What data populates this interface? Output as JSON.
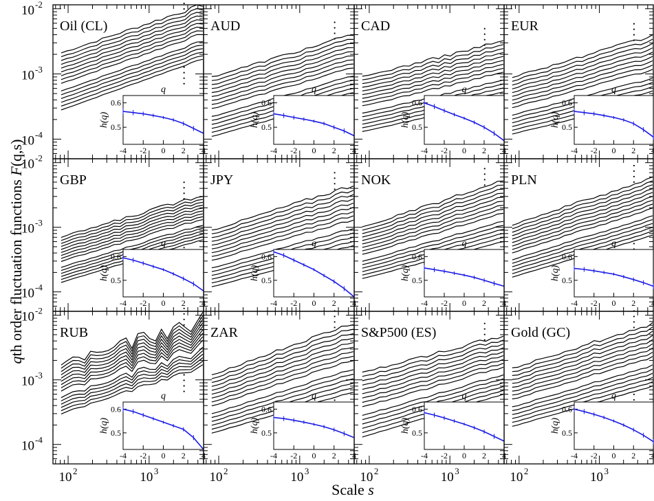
{
  "figure": {
    "ylabel_italic": "q",
    "ylabel_rest": "th order fluctuation functions ",
    "ylabel_func": "F",
    "ylabel_args": "(q,s)",
    "xlabel_text": "Scale ",
    "xlabel_var": "s",
    "main_y_ticks": [
      {
        "exp": "-2"
      },
      {
        "exp": "-3"
      },
      {
        "exp": "-4"
      }
    ],
    "main_x_ticks": [
      {
        "exp": "2"
      },
      {
        "exp": "3"
      }
    ],
    "inset": {
      "xlabel": "q",
      "ylabel": "h(q)",
      "yticks": [
        "0.6",
        "0.5"
      ],
      "xticks": [
        "-4",
        "-2",
        "0",
        "2",
        "4"
      ]
    },
    "colors": {
      "axes": "#000000",
      "curves": "#000000",
      "hq": "#1a1ae6",
      "gap_curve": "#ffffff"
    }
  },
  "chart_data": [
    {
      "type": "line",
      "title": "Oil (CL)",
      "xscale": "log",
      "yscale": "log",
      "xlim": [
        65,
        4700
      ],
      "ylim": [
        5e-05,
        0.0115
      ],
      "n_curves": 16,
      "F_at_smin": {
        "top": 0.0021,
        "bottom": 0.00028
      },
      "F_at_smax": {
        "top": 0.0115,
        "bottom": 0.0017
      },
      "hq": {
        "q": [
          -4,
          -3,
          -2,
          -1,
          0,
          1,
          2,
          3,
          4
        ],
        "h": [
          0.565,
          0.56,
          0.555,
          0.548,
          0.54,
          0.53,
          0.515,
          0.495,
          0.475
        ]
      }
    },
    {
      "type": "line",
      "title": "AUD",
      "xscale": "log",
      "yscale": "log",
      "xlim": [
        65,
        4700
      ],
      "ylim": [
        5e-05,
        0.0115
      ],
      "n_curves": 16,
      "F_at_smin": {
        "top": 0.0009,
        "bottom": 0.00011
      },
      "F_at_smax": {
        "top": 0.004,
        "bottom": 0.00045
      },
      "hq": {
        "q": [
          -4,
          -3,
          -2,
          -1,
          0,
          1,
          2,
          3,
          4
        ],
        "h": [
          0.555,
          0.548,
          0.54,
          0.533,
          0.525,
          0.515,
          0.5,
          0.485,
          0.465
        ]
      }
    },
    {
      "type": "line",
      "title": "CAD",
      "xscale": "log",
      "yscale": "log",
      "xlim": [
        65,
        4700
      ],
      "ylim": [
        5e-05,
        0.0115
      ],
      "n_curves": 16,
      "F_at_smin": {
        "top": 0.0009,
        "bottom": 0.00013
      },
      "F_at_smax": {
        "top": 0.0032,
        "bottom": 0.0004
      },
      "hq": {
        "q": [
          -4,
          -3,
          -2,
          -1,
          0,
          1,
          2,
          3,
          4
        ],
        "h": [
          0.6,
          0.585,
          0.568,
          0.552,
          0.537,
          0.52,
          0.5,
          0.475,
          0.445
        ]
      }
    },
    {
      "type": "line",
      "title": "EUR",
      "xscale": "log",
      "yscale": "log",
      "xlim": [
        65,
        4700
      ],
      "ylim": [
        5e-05,
        0.0115
      ],
      "n_curves": 16,
      "F_at_smin": {
        "top": 0.0009,
        "bottom": 0.00012
      },
      "F_at_smax": {
        "top": 0.0038,
        "bottom": 0.0004
      },
      "hq": {
        "q": [
          -4,
          -3,
          -2,
          -1,
          0,
          1,
          2,
          3,
          4
        ],
        "h": [
          0.565,
          0.56,
          0.555,
          0.548,
          0.54,
          0.53,
          0.515,
          0.49,
          0.46
        ]
      }
    },
    {
      "type": "line",
      "title": "GBP",
      "xscale": "log",
      "yscale": "log",
      "xlim": [
        65,
        4700
      ],
      "ylim": [
        5e-05,
        0.0115
      ],
      "n_curves": 16,
      "F_at_smin": {
        "top": 0.0007,
        "bottom": 0.00014
      },
      "F_at_smax": {
        "top": 0.0032,
        "bottom": 0.00065
      },
      "hq": {
        "q": [
          -4,
          -3,
          -2,
          -1,
          0,
          1,
          2,
          3,
          4
        ],
        "h": [
          0.595,
          0.585,
          0.572,
          0.558,
          0.545,
          0.527,
          0.507,
          0.485,
          0.455
        ]
      }
    },
    {
      "type": "line",
      "title": "JPY",
      "xscale": "log",
      "yscale": "log",
      "xlim": [
        65,
        4700
      ],
      "ylim": [
        5e-05,
        0.0115
      ],
      "n_curves": 16,
      "F_at_smin": {
        "top": 0.0009,
        "bottom": 0.00012
      },
      "F_at_smax": {
        "top": 0.0045,
        "bottom": 0.00045
      },
      "hq": {
        "q": [
          -4,
          -3,
          -2,
          -1,
          0,
          1,
          2,
          3,
          4
        ],
        "h": [
          0.62,
          0.605,
          0.585,
          0.565,
          0.545,
          0.52,
          0.495,
          0.465,
          0.43
        ]
      }
    },
    {
      "type": "line",
      "title": "NOK",
      "xscale": "log",
      "yscale": "log",
      "xlim": [
        65,
        4700
      ],
      "ylim": [
        5e-05,
        0.0115
      ],
      "n_curves": 16,
      "F_at_smin": {
        "top": 0.001,
        "bottom": 0.00016
      },
      "F_at_smax": {
        "top": 0.0052,
        "bottom": 0.0006
      },
      "hq": {
        "q": [
          -4,
          -3,
          -2,
          -1,
          0,
          1,
          2,
          3,
          4
        ],
        "h": [
          0.552,
          0.545,
          0.538,
          0.53,
          0.522,
          0.512,
          0.5,
          0.487,
          0.475
        ]
      }
    },
    {
      "type": "line",
      "title": "PLN",
      "xscale": "log",
      "yscale": "log",
      "xlim": [
        65,
        4700
      ],
      "ylim": [
        5e-05,
        0.0115
      ],
      "n_curves": 16,
      "F_at_smin": {
        "top": 0.0011,
        "bottom": 0.00017
      },
      "F_at_smax": {
        "top": 0.0058,
        "bottom": 0.00075
      },
      "hq": {
        "q": [
          -4,
          -3,
          -2,
          -1,
          0,
          1,
          2,
          3,
          4
        ],
        "h": [
          0.55,
          0.546,
          0.54,
          0.533,
          0.526,
          0.515,
          0.503,
          0.49,
          0.475
        ]
      }
    },
    {
      "type": "line",
      "title": "RUB",
      "xscale": "log",
      "yscale": "log",
      "xlim": [
        65,
        4700
      ],
      "ylim": [
        5e-05,
        0.0115
      ],
      "n_curves": 16,
      "F_at_smin": {
        "top": 0.0018,
        "bottom": 0.0003
      },
      "F_at_smax": {
        "top": 0.0082,
        "bottom": 0.0016
      },
      "hq": {
        "q": [
          -4,
          -3,
          -2,
          -1,
          0,
          1,
          2,
          3,
          4
        ],
        "h": [
          0.6,
          0.59,
          0.575,
          0.56,
          0.545,
          0.53,
          0.515,
          0.48,
          0.43
        ]
      }
    },
    {
      "type": "line",
      "title": "ZAR",
      "xscale": "log",
      "yscale": "log",
      "xlim": [
        65,
        4700
      ],
      "ylim": [
        5e-05,
        0.0115
      ],
      "n_curves": 16,
      "F_at_smin": {
        "top": 0.0012,
        "bottom": 0.00015
      },
      "F_at_smax": {
        "top": 0.0075,
        "bottom": 0.00065
      },
      "hq": {
        "q": [
          -4,
          -3,
          -2,
          -1,
          0,
          1,
          2,
          3,
          4
        ],
        "h": [
          0.565,
          0.56,
          0.553,
          0.545,
          0.536,
          0.526,
          0.513,
          0.497,
          0.48
        ]
      }
    },
    {
      "type": "line",
      "title": "S&P500 (ES)",
      "xscale": "log",
      "yscale": "log",
      "xlim": [
        65,
        4700
      ],
      "ylim": [
        5e-05,
        0.0115
      ],
      "n_curves": 16,
      "F_at_smin": {
        "top": 0.0013,
        "bottom": 0.00013
      },
      "F_at_smax": {
        "top": 0.0048,
        "bottom": 0.0006
      },
      "hq": {
        "q": [
          -4,
          -3,
          -2,
          -1,
          0,
          1,
          2,
          3,
          4
        ],
        "h": [
          0.585,
          0.575,
          0.563,
          0.55,
          0.537,
          0.522,
          0.505,
          0.485,
          0.465
        ]
      }
    },
    {
      "type": "line",
      "title": "Gold (GC)",
      "xscale": "log",
      "yscale": "log",
      "xlim": [
        65,
        4700
      ],
      "ylim": [
        5e-05,
        0.0115
      ],
      "n_curves": 16,
      "F_at_smin": {
        "top": 0.0015,
        "bottom": 0.00019
      },
      "F_at_smax": {
        "top": 0.0075,
        "bottom": 0.0008
      },
      "hq": {
        "q": [
          -4,
          -3,
          -2,
          -1,
          0,
          1,
          2,
          3,
          4
        ],
        "h": [
          0.6,
          0.59,
          0.578,
          0.565,
          0.55,
          0.533,
          0.513,
          0.49,
          0.463
        ]
      }
    }
  ]
}
